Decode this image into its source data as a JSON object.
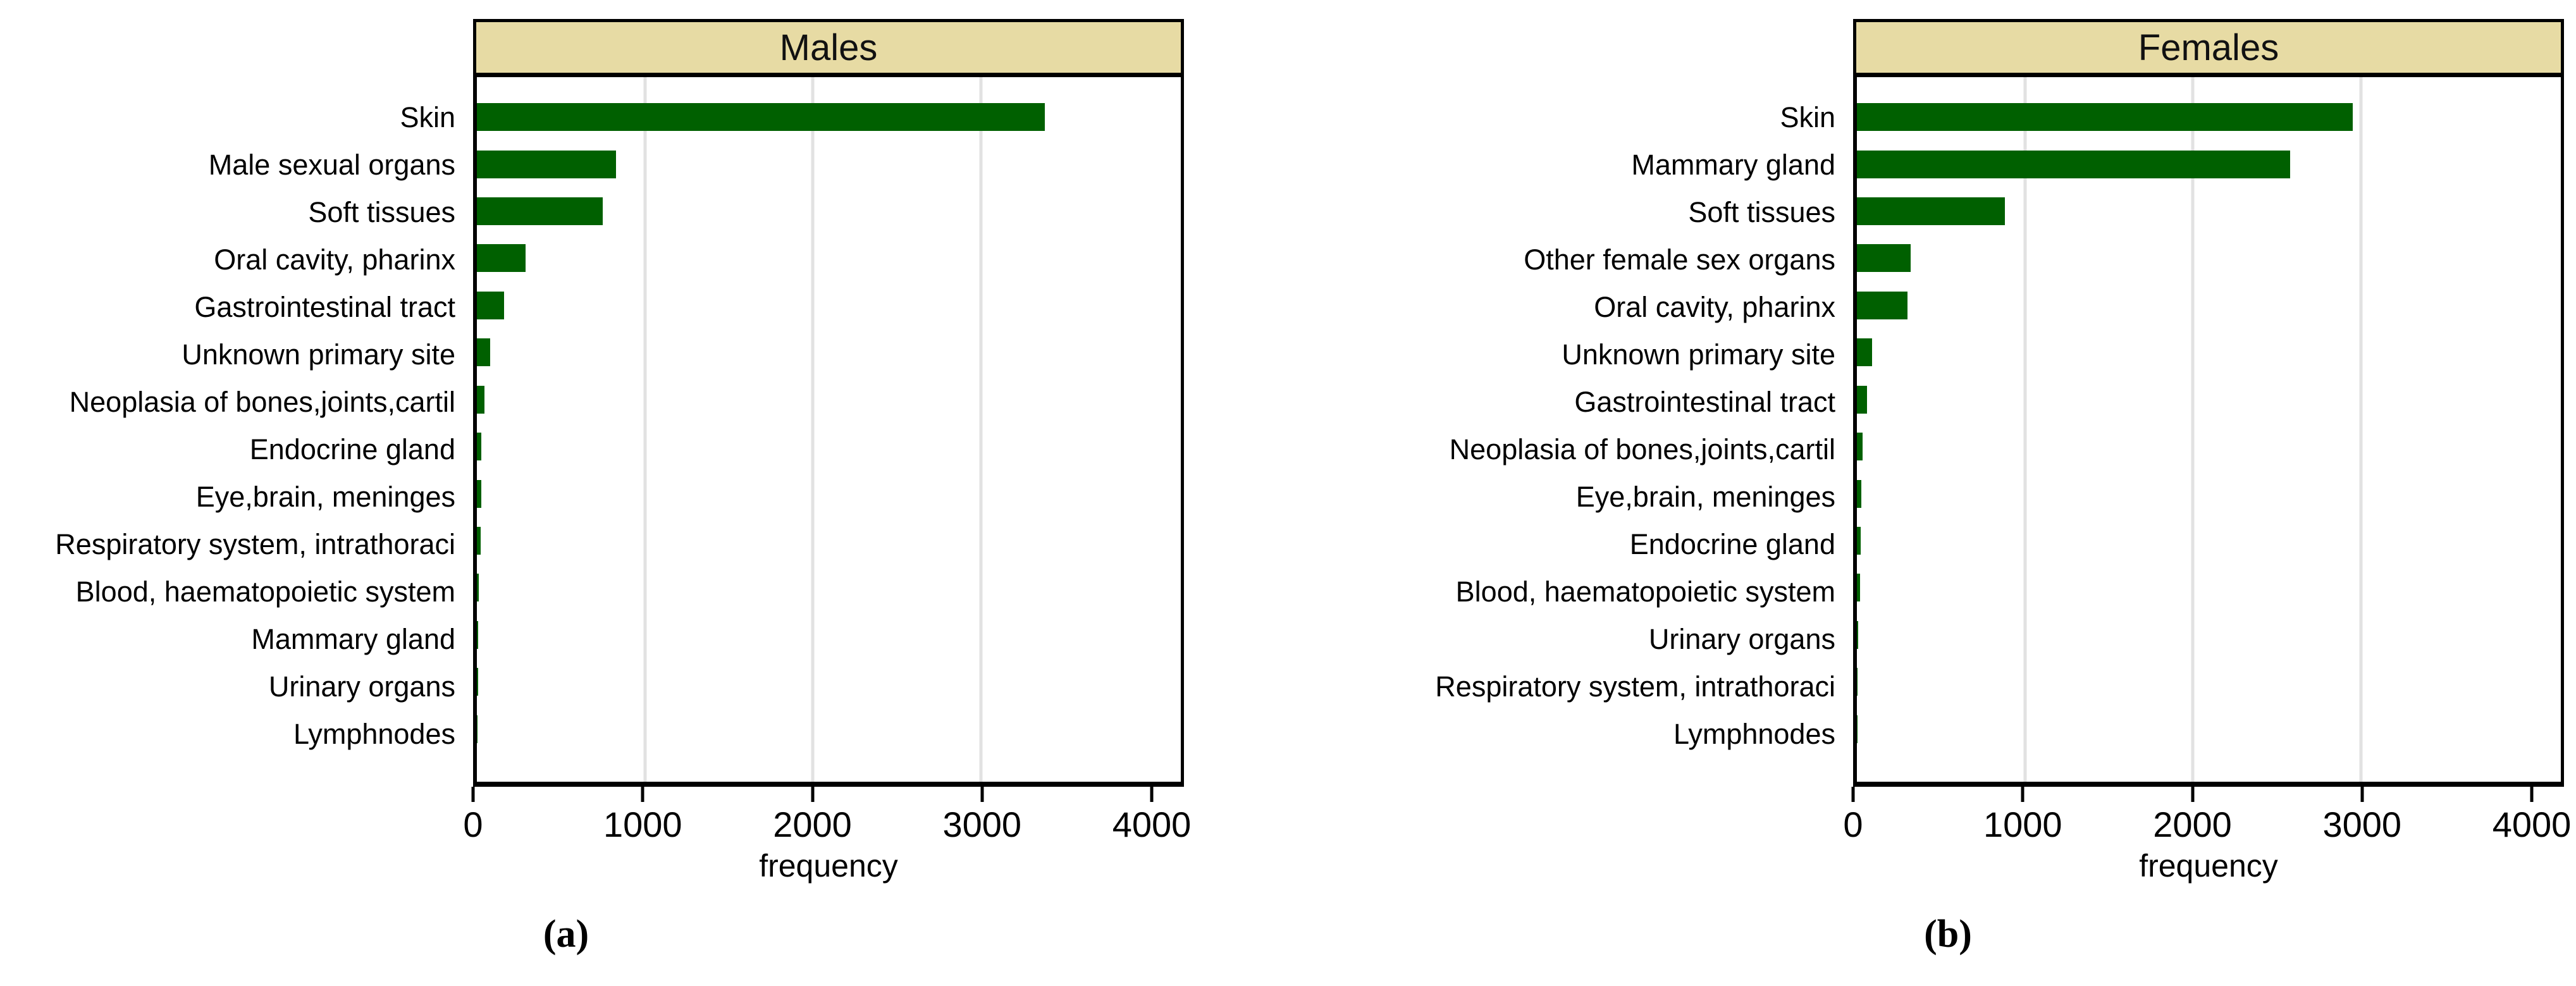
{
  "figure": {
    "caption_a": "(a)",
    "caption_b": "(b)"
  },
  "colors": {
    "bar": "#006000",
    "strip_bg": "#e7dba4",
    "gridline": "#e2e2e2",
    "frame": "#000000"
  },
  "chart_data": [
    {
      "type": "bar",
      "orientation": "horizontal",
      "title": "Males",
      "xlabel": "frequency",
      "xlim": [
        0,
        4190
      ],
      "xticks": [
        0,
        1000,
        2000,
        3000,
        4000
      ],
      "gridlines": [
        1000,
        2000,
        3000
      ],
      "grid": true,
      "legend": "none",
      "categories": [
        "Skin",
        "Male sexual organs",
        "Soft tissues",
        "Oral cavity, pharinx",
        "Gastrointestinal tract",
        "Unknown primary site",
        "Neoplasia of bones,joints,cartil",
        "Endocrine gland",
        "Eye,brain, meninges",
        "Respiratory system, intrathoraci",
        "Blood, haematopoietic system",
        "Mammary gland",
        "Urinary organs",
        "Lymphnodes"
      ],
      "values": [
        3380,
        830,
        750,
        290,
        160,
        78,
        45,
        28,
        27,
        22,
        13,
        7,
        6,
        1
      ]
    },
    {
      "type": "bar",
      "orientation": "horizontal",
      "title": "Females",
      "xlabel": "frequency",
      "xlim": [
        0,
        4190
      ],
      "xticks": [
        0,
        1000,
        2000,
        3000,
        4000
      ],
      "gridlines": [
        1000,
        2000,
        3000
      ],
      "grid": true,
      "legend": "none",
      "categories": [
        "Skin",
        "Mammary gland",
        "Soft tissues",
        "Other female sex organs",
        "Oral cavity, pharinx",
        "Unknown primary site",
        "Gastrointestinal tract",
        "Neoplasia of bones,joints,cartil",
        "Eye,brain, meninges",
        "Endocrine gland",
        "Blood, haematopoietic system",
        "Urinary organs",
        "Respiratory system, intrathoraci",
        "Lymphnodes"
      ],
      "values": [
        2950,
        2580,
        880,
        320,
        300,
        90,
        60,
        35,
        26,
        23,
        19,
        7,
        4,
        1
      ]
    }
  ]
}
